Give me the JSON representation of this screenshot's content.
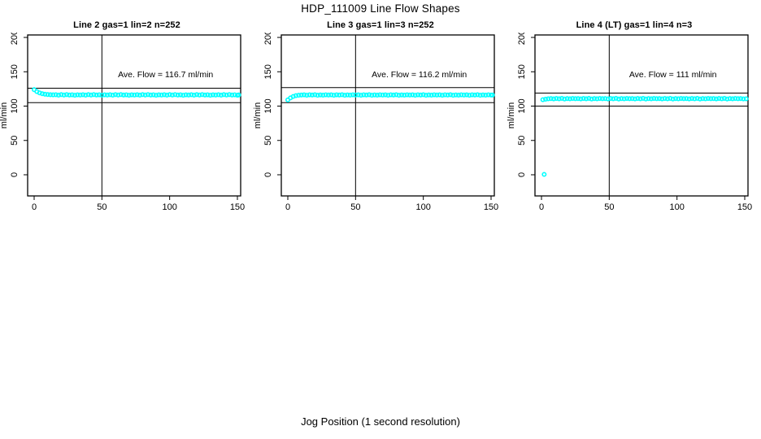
{
  "page": {
    "title": "HDP_111009  Line Flow Shapes",
    "xlabel": "Jog Position (1 second resolution)"
  },
  "colors": {
    "points": "#00FFFF",
    "axis": "#000000",
    "background": "#FFFFFF"
  },
  "chart_data": [
    {
      "type": "scatter",
      "title": "Line 2 gas=1 lin=2 n=252",
      "annotation": "Ave. Flow =  116.7  ml/min",
      "ave_flow_ml_min": 116.7,
      "ylabel": "ml/min",
      "x_ticks": [
        0,
        50,
        100,
        150
      ],
      "y_ticks": [
        0,
        50,
        100,
        150,
        200
      ],
      "xlim": [
        -4.8,
        152.4
      ],
      "ylim": [
        -30.8,
        203.6
      ],
      "vline_x": 50,
      "hlines": [
        126,
        105
      ],
      "annotation_pos": {
        "x": 97,
        "y": 147
      },
      "points": [
        [
          0,
          124.0
        ],
        [
          2,
          121.2
        ],
        [
          4,
          119.3
        ],
        [
          6,
          118.1
        ],
        [
          8,
          117.3
        ],
        [
          10,
          116.9
        ],
        [
          12,
          116.6
        ],
        [
          14,
          116.4
        ],
        [
          16,
          116.6
        ],
        [
          18,
          116.0
        ],
        [
          20,
          116.7
        ],
        [
          22,
          116.2
        ],
        [
          24,
          116.8
        ],
        [
          26,
          116.1
        ],
        [
          28,
          116.5
        ],
        [
          30,
          115.9
        ],
        [
          32,
          116.4
        ],
        [
          34,
          116.2
        ],
        [
          36,
          116.6
        ],
        [
          38,
          116.0
        ],
        [
          40,
          116.7
        ],
        [
          42,
          116.2
        ],
        [
          44,
          116.8
        ],
        [
          46,
          116.1
        ],
        [
          48,
          116.5
        ],
        [
          50,
          115.9
        ],
        [
          52,
          116.4
        ],
        [
          54,
          116.2
        ],
        [
          56,
          116.6
        ],
        [
          58,
          116.0
        ],
        [
          60,
          116.7
        ],
        [
          62,
          116.2
        ],
        [
          64,
          116.8
        ],
        [
          66,
          116.1
        ],
        [
          68,
          116.5
        ],
        [
          70,
          115.9
        ],
        [
          72,
          116.4
        ],
        [
          74,
          116.2
        ],
        [
          76,
          116.6
        ],
        [
          78,
          116.0
        ],
        [
          80,
          116.7
        ],
        [
          82,
          116.2
        ],
        [
          84,
          116.8
        ],
        [
          86,
          116.1
        ],
        [
          88,
          116.5
        ],
        [
          90,
          115.9
        ],
        [
          92,
          116.4
        ],
        [
          94,
          116.2
        ],
        [
          96,
          116.6
        ],
        [
          98,
          116.0
        ],
        [
          100,
          116.7
        ],
        [
          102,
          116.2
        ],
        [
          104,
          116.8
        ],
        [
          106,
          116.1
        ],
        [
          108,
          116.5
        ],
        [
          110,
          115.9
        ],
        [
          112,
          116.4
        ],
        [
          114,
          116.2
        ],
        [
          116,
          116.6
        ],
        [
          118,
          116.0
        ],
        [
          120,
          116.7
        ],
        [
          122,
          116.2
        ],
        [
          124,
          116.8
        ],
        [
          126,
          116.1
        ],
        [
          128,
          116.5
        ],
        [
          130,
          115.9
        ],
        [
          132,
          116.4
        ],
        [
          134,
          116.2
        ],
        [
          136,
          116.6
        ],
        [
          138,
          116.0
        ],
        [
          140,
          116.7
        ],
        [
          142,
          116.2
        ],
        [
          144,
          116.8
        ],
        [
          146,
          116.1
        ],
        [
          148,
          116.5
        ],
        [
          150,
          115.9
        ],
        [
          151,
          116.3
        ]
      ]
    },
    {
      "type": "scatter",
      "title": "Line 3 gas=1 lin=3 n=252",
      "annotation": "Ave. Flow =  116.2  ml/min",
      "ave_flow_ml_min": 116.2,
      "ylabel": "ml/min",
      "x_ticks": [
        0,
        50,
        100,
        150
      ],
      "y_ticks": [
        0,
        50,
        100,
        150,
        200
      ],
      "xlim": [
        -4.8,
        152.4
      ],
      "ylim": [
        -30.8,
        203.6
      ],
      "vline_x": 50,
      "hlines": [
        127,
        105
      ],
      "annotation_pos": {
        "x": 97,
        "y": 147
      },
      "points": [
        [
          0,
          109.0
        ],
        [
          2,
          112.0
        ],
        [
          4,
          114.0
        ],
        [
          6,
          115.2
        ],
        [
          8,
          115.8
        ],
        [
          10,
          116.1
        ],
        [
          12,
          116.4
        ],
        [
          14,
          115.9
        ],
        [
          16,
          116.5
        ],
        [
          18,
          116.1
        ],
        [
          20,
          116.6
        ],
        [
          22,
          115.8
        ],
        [
          24,
          116.3
        ],
        [
          26,
          116.0
        ],
        [
          28,
          116.5
        ],
        [
          30,
          116.2
        ],
        [
          32,
          116.4
        ],
        [
          34,
          115.9
        ],
        [
          36,
          116.5
        ],
        [
          38,
          116.1
        ],
        [
          40,
          116.6
        ],
        [
          42,
          115.8
        ],
        [
          44,
          116.3
        ],
        [
          46,
          116.0
        ],
        [
          48,
          116.5
        ],
        [
          50,
          116.2
        ],
        [
          52,
          116.4
        ],
        [
          54,
          115.9
        ],
        [
          56,
          116.5
        ],
        [
          58,
          116.1
        ],
        [
          60,
          116.6
        ],
        [
          62,
          115.8
        ],
        [
          64,
          116.3
        ],
        [
          66,
          116.0
        ],
        [
          68,
          116.5
        ],
        [
          70,
          116.2
        ],
        [
          72,
          116.4
        ],
        [
          74,
          115.9
        ],
        [
          76,
          116.5
        ],
        [
          78,
          116.1
        ],
        [
          80,
          116.6
        ],
        [
          82,
          115.8
        ],
        [
          84,
          116.3
        ],
        [
          86,
          116.0
        ],
        [
          88,
          116.5
        ],
        [
          90,
          116.2
        ],
        [
          92,
          116.4
        ],
        [
          94,
          115.9
        ],
        [
          96,
          116.5
        ],
        [
          98,
          116.1
        ],
        [
          100,
          116.6
        ],
        [
          102,
          115.8
        ],
        [
          104,
          116.3
        ],
        [
          106,
          116.0
        ],
        [
          108,
          116.5
        ],
        [
          110,
          116.2
        ],
        [
          112,
          116.4
        ],
        [
          114,
          115.9
        ],
        [
          116,
          116.5
        ],
        [
          118,
          116.1
        ],
        [
          120,
          116.6
        ],
        [
          122,
          115.8
        ],
        [
          124,
          116.3
        ],
        [
          126,
          116.0
        ],
        [
          128,
          116.5
        ],
        [
          130,
          116.2
        ],
        [
          132,
          116.4
        ],
        [
          134,
          115.9
        ],
        [
          136,
          116.5
        ],
        [
          138,
          116.1
        ],
        [
          140,
          116.6
        ],
        [
          142,
          115.8
        ],
        [
          144,
          116.3
        ],
        [
          146,
          116.0
        ],
        [
          148,
          116.5
        ],
        [
          150,
          116.2
        ],
        [
          151,
          116.1
        ]
      ]
    },
    {
      "type": "scatter",
      "title": "Line 4 (LT) gas=1 lin=4 n=3",
      "annotation": "Ave. Flow =  111  ml/min",
      "ave_flow_ml_min": 111,
      "ylabel": "ml/min",
      "x_ticks": [
        0,
        50,
        100,
        150
      ],
      "y_ticks": [
        0,
        50,
        100,
        150,
        200
      ],
      "xlim": [
        -4.8,
        152.4
      ],
      "ylim": [
        -30.8,
        203.6
      ],
      "vline_x": 50,
      "hlines": [
        119,
        100
      ],
      "annotation_pos": {
        "x": 97,
        "y": 147
      },
      "points": [
        [
          2,
          0.5
        ],
        [
          1,
          109.4
        ],
        [
          3,
          110.1
        ],
        [
          5,
          110.6
        ],
        [
          7,
          111.0
        ],
        [
          9,
          110.5
        ],
        [
          11,
          111.1
        ],
        [
          13,
          110.7
        ],
        [
          15,
          111.2
        ],
        [
          17,
          110.4
        ],
        [
          19,
          110.9
        ],
        [
          21,
          110.6
        ],
        [
          23,
          111.1
        ],
        [
          25,
          110.8
        ],
        [
          27,
          111.0
        ],
        [
          29,
          110.5
        ],
        [
          31,
          111.1
        ],
        [
          33,
          110.7
        ],
        [
          35,
          111.2
        ],
        [
          37,
          110.4
        ],
        [
          39,
          110.9
        ],
        [
          41,
          110.6
        ],
        [
          43,
          111.1
        ],
        [
          45,
          110.8
        ],
        [
          47,
          111.0
        ],
        [
          49,
          110.5
        ],
        [
          51,
          111.1
        ],
        [
          53,
          110.7
        ],
        [
          55,
          111.2
        ],
        [
          57,
          110.4
        ],
        [
          59,
          110.9
        ],
        [
          61,
          110.6
        ],
        [
          63,
          111.1
        ],
        [
          65,
          110.8
        ],
        [
          67,
          111.0
        ],
        [
          69,
          110.5
        ],
        [
          71,
          111.1
        ],
        [
          73,
          110.7
        ],
        [
          75,
          111.2
        ],
        [
          77,
          110.4
        ],
        [
          79,
          110.9
        ],
        [
          81,
          110.6
        ],
        [
          83,
          111.1
        ],
        [
          85,
          110.8
        ],
        [
          87,
          111.0
        ],
        [
          89,
          110.5
        ],
        [
          91,
          111.1
        ],
        [
          93,
          110.7
        ],
        [
          95,
          111.2
        ],
        [
          97,
          110.4
        ],
        [
          99,
          110.9
        ],
        [
          101,
          110.6
        ],
        [
          103,
          111.1
        ],
        [
          105,
          110.8
        ],
        [
          107,
          111.0
        ],
        [
          109,
          110.5
        ],
        [
          111,
          111.1
        ],
        [
          113,
          110.7
        ],
        [
          115,
          111.2
        ],
        [
          117,
          110.4
        ],
        [
          119,
          110.9
        ],
        [
          121,
          110.6
        ],
        [
          123,
          111.1
        ],
        [
          125,
          110.8
        ],
        [
          127,
          111.0
        ],
        [
          129,
          110.5
        ],
        [
          131,
          111.1
        ],
        [
          133,
          110.7
        ],
        [
          135,
          111.2
        ],
        [
          137,
          110.4
        ],
        [
          139,
          110.9
        ],
        [
          141,
          110.6
        ],
        [
          143,
          111.1
        ],
        [
          145,
          110.8
        ],
        [
          147,
          111.0
        ],
        [
          149,
          110.5
        ],
        [
          151,
          110.7
        ]
      ]
    }
  ]
}
